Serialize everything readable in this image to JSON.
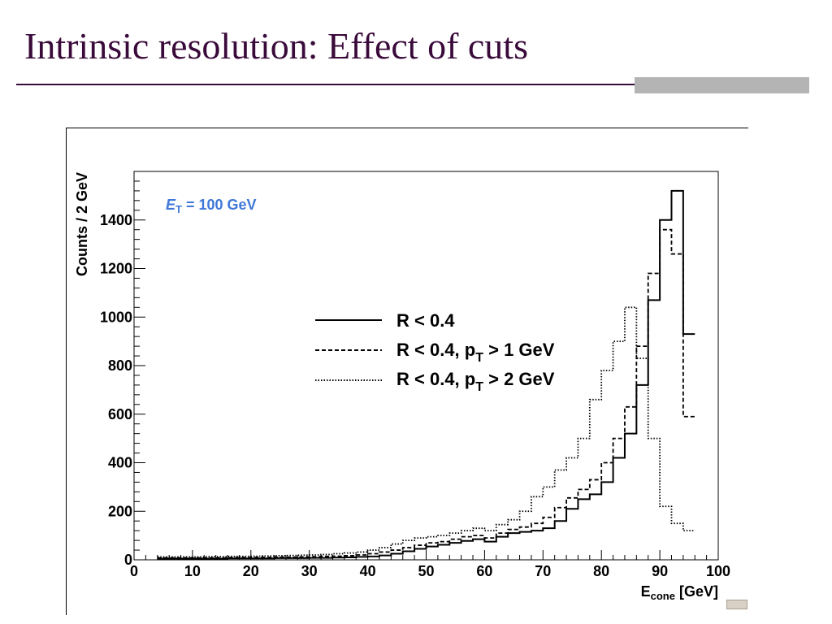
{
  "slide": {
    "title": "Intrinsic resolution: Effect of cuts"
  },
  "colors": {
    "title": "#3a0a3a",
    "annotation": "#3f78d8",
    "series": "#000000"
  },
  "chart_data": {
    "type": "line",
    "xlabel_main": "E",
    "xlabel_sub": "cone",
    "xlabel_unit": "[GeV]",
    "ylabel": "Counts / 2 GeV",
    "xlim": [
      0,
      100
    ],
    "ylim": [
      0,
      1600
    ],
    "x_ticks": [
      "0",
      "10",
      "20",
      "30",
      "40",
      "50",
      "60",
      "70",
      "80",
      "90",
      "100"
    ],
    "y_ticks": [
      "0",
      "200",
      "400",
      "600",
      "800",
      "1000",
      "1200",
      "1400"
    ],
    "grid": false,
    "legend_position": "center-right",
    "annotation": {
      "var": "E",
      "sub": "T",
      "text": " = 100 GeV"
    },
    "bin_edges_start": 4,
    "bin_width": 2,
    "series": [
      {
        "name": "R < 0.4",
        "legend_main": "R < 0.4",
        "legend_sub": "",
        "legend_tail": "",
        "style": "solid",
        "values": [
          5,
          5,
          5,
          5,
          5,
          5,
          6,
          6,
          6,
          6,
          7,
          7,
          7,
          8,
          8,
          9,
          10,
          12,
          14,
          18,
          25,
          35,
          45,
          55,
          62,
          70,
          78,
          85,
          75,
          95,
          110,
          115,
          120,
          130,
          160,
          210,
          250,
          270,
          320,
          420,
          520,
          720,
          1070,
          1400,
          1520,
          930
        ]
      },
      {
        "name": "R < 0.4, pT > 1 GeV",
        "legend_main": "R < 0.4, p",
        "legend_sub": "T",
        "legend_tail": " > 1 GeV",
        "style": "dashed",
        "values": [
          8,
          8,
          8,
          8,
          8,
          8,
          9,
          9,
          10,
          10,
          11,
          11,
          12,
          13,
          14,
          15,
          17,
          20,
          25,
          32,
          40,
          50,
          60,
          70,
          75,
          85,
          95,
          100,
          90,
          110,
          125,
          135,
          150,
          175,
          215,
          255,
          290,
          330,
          400,
          500,
          630,
          880,
          1180,
          1360,
          1260,
          590
        ]
      },
      {
        "name": "R < 0.4, pT > 2 GeV",
        "legend_main": "R < 0.4, p",
        "legend_sub": "T",
        "legend_tail": " > 2 GeV",
        "style": "dotted",
        "values": [
          12,
          12,
          12,
          12,
          13,
          13,
          14,
          14,
          15,
          16,
          17,
          18,
          19,
          20,
          22,
          25,
          28,
          32,
          40,
          50,
          65,
          80,
          90,
          95,
          100,
          110,
          120,
          130,
          120,
          145,
          165,
          200,
          260,
          300,
          370,
          420,
          500,
          660,
          780,
          900,
          1040,
          830,
          500,
          220,
          150,
          120
        ]
      }
    ]
  }
}
